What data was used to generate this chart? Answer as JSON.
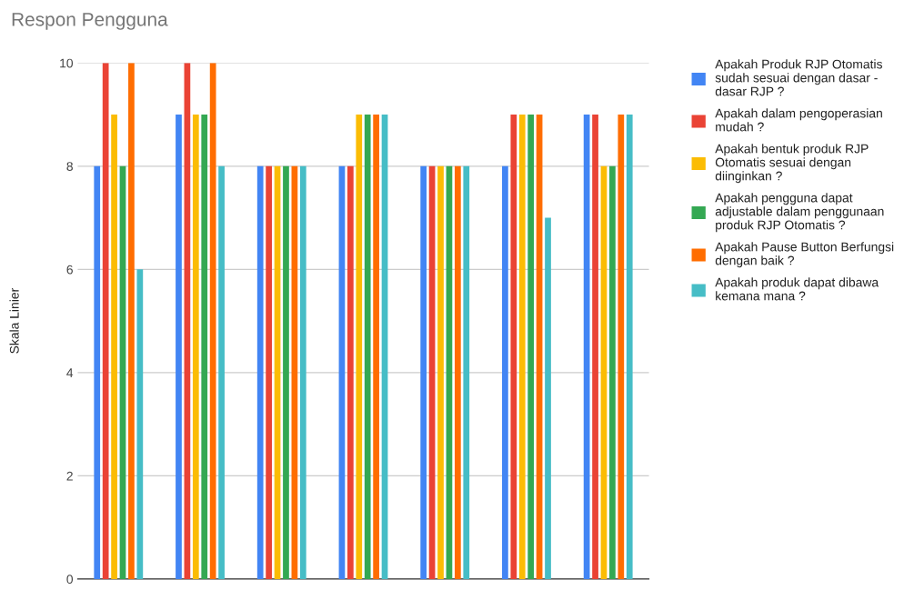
{
  "chart_data": {
    "type": "bar",
    "title": "Respon Pengguna",
    "ylabel": "Skala Linier",
    "categories": [
      null,
      null,
      null,
      null,
      null,
      null,
      null
    ],
    "series": [
      {
        "name": "Apakah Produk RJP Otomatis sudah sesuai dengan dasar - dasar RJP ?",
        "color": "#4285f4",
        "values": [
          8,
          9,
          8,
          8,
          8,
          8,
          9
        ]
      },
      {
        "name": "Apakah dalam pengoperasian mudah ?",
        "color": "#ea4335",
        "values": [
          10,
          10,
          8,
          8,
          8,
          9,
          9
        ]
      },
      {
        "name": "Apakah bentuk produk RJP Otomatis sesuai dengan diinginkan ?",
        "color": "#fbbc04",
        "values": [
          9,
          9,
          8,
          9,
          8,
          9,
          8
        ]
      },
      {
        "name": "Apakah pengguna dapat adjustable dalam penggunaan produk RJP Otomatis ?",
        "color": "#34a853",
        "values": [
          8,
          9,
          8,
          9,
          8,
          9,
          8
        ]
      },
      {
        "name": "Apakah Pause Button Berfungsi dengan baik ?",
        "color": "#ff6d01",
        "values": [
          10,
          10,
          8,
          9,
          8,
          9,
          9
        ]
      },
      {
        "name": "Apakah produk dapat dibawa kemana mana ?",
        "color": "#46bdc6",
        "values": [
          6,
          8,
          8,
          9,
          8,
          7,
          9
        ]
      }
    ],
    "ylim": [
      0,
      10
    ],
    "yticks": [
      0,
      2,
      4,
      6,
      8,
      10
    ],
    "grid": "y",
    "legend": "right"
  }
}
